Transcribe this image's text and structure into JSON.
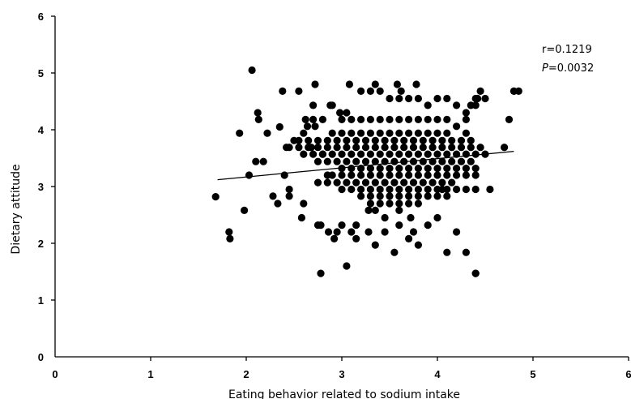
{
  "chart_data": {
    "type": "scatter",
    "title": "",
    "xlabel": "Eating behavior related to sodium intake",
    "ylabel": "Dietary attitude",
    "xlim": [
      0,
      6
    ],
    "ylim": [
      0,
      6
    ],
    "xticks": [
      "0",
      "1",
      "2",
      "3",
      "4",
      "5",
      "6"
    ],
    "yticks": [
      "0",
      "1",
      "2",
      "3",
      "4",
      "5",
      "6"
    ],
    "grid": false,
    "annotations": {
      "r": "r=0.1219",
      "p_letter": "P",
      "p_value": "=0.0032"
    },
    "trendline": {
      "x": [
        1.7,
        4.8
      ],
      "y": [
        3.12,
        3.62
      ]
    },
    "marker_color": "#000000",
    "points": {
      "x": [
        1.68,
        1.82,
        1.83,
        1.93,
        1.98,
        2.03,
        2.06,
        2.1,
        2.12,
        2.13,
        2.18,
        2.22,
        2.28,
        2.33,
        2.35,
        2.38,
        2.4,
        2.42,
        2.45,
        2.45,
        2.55,
        2.58,
        2.6,
        2.62,
        2.64,
        2.68,
        2.7,
        2.72,
        2.75,
        2.78,
        2.8,
        2.85,
        2.86,
        2.88,
        2.9,
        2.92,
        2.95,
        3.0,
        3.05,
        3.1,
        3.15,
        3.15,
        3.28,
        3.35,
        3.45,
        3.55,
        3.6,
        3.7,
        3.75,
        3.8,
        3.9,
        4.0,
        4.1,
        4.2,
        4.3,
        4.4,
        4.45,
        4.5,
        4.55,
        4.7,
        4.75,
        4.8,
        4.85,
        3.08,
        2.78,
        4.4,
        3.35,
        3.58,
        3.62,
        3.78,
        3.2,
        3.3,
        3.4,
        3.5,
        3.6,
        3.7,
        3.8,
        3.9,
        4.0,
        4.1,
        4.2,
        4.4,
        2.98,
        3.05,
        4.3,
        4.35,
        4.4,
        4.42,
        2.7,
        2.72,
        2.8,
        3.0,
        3.1,
        3.2,
        3.3,
        3.4,
        3.5,
        3.6,
        3.7,
        3.8,
        3.9,
        4.0,
        4.1,
        4.2,
        4.3,
        2.6,
        2.9,
        3.0,
        3.1,
        3.2,
        3.3,
        3.4,
        3.5,
        3.6,
        3.7,
        3.8,
        3.9,
        4.0,
        4.1,
        4.3,
        2.5,
        2.55,
        2.65,
        2.75,
        2.85,
        2.95,
        3.05,
        3.15,
        3.25,
        3.35,
        3.45,
        3.55,
        3.65,
        3.75,
        3.85,
        3.95,
        4.05,
        4.15,
        4.25,
        4.35,
        2.45,
        2.55,
        2.65,
        2.75,
        2.85,
        2.95,
        3.05,
        3.15,
        3.25,
        3.35,
        3.45,
        3.55,
        3.65,
        3.75,
        3.85,
        3.95,
        4.05,
        4.15,
        4.25,
        4.35,
        4.45,
        2.6,
        2.7,
        2.8,
        2.9,
        3.0,
        3.1,
        3.2,
        3.3,
        3.4,
        3.5,
        3.6,
        3.7,
        3.8,
        3.9,
        4.0,
        4.1,
        4.2,
        4.3,
        4.4,
        4.5,
        2.75,
        2.85,
        2.95,
        3.05,
        3.15,
        3.25,
        3.35,
        3.45,
        3.55,
        3.65,
        3.75,
        3.85,
        3.95,
        4.05,
        4.15,
        4.25,
        4.35,
        3.0,
        3.1,
        3.2,
        3.3,
        3.4,
        3.5,
        3.6,
        3.7,
        3.8,
        3.9,
        4.0,
        4.1,
        4.2,
        4.3,
        4.4,
        2.9,
        3.0,
        3.1,
        3.2,
        3.3,
        3.4,
        3.5,
        3.6,
        3.7,
        3.8,
        3.9,
        4.0,
        4.1,
        4.2,
        4.3,
        4.4,
        2.75,
        2.85,
        2.95,
        3.05,
        3.15,
        3.25,
        3.35,
        3.45,
        3.55,
        3.65,
        3.75,
        3.85,
        3.95,
        4.05,
        4.15,
        3.0,
        3.1,
        3.2,
        3.3,
        3.4,
        3.5,
        3.6,
        3.7,
        3.8,
        3.9,
        4.0,
        4.1,
        3.2,
        3.3,
        3.4,
        3.5,
        3.6,
        3.7,
        3.8,
        3.9,
        4.0,
        3.3,
        3.4,
        3.5,
        3.6,
        3.7,
        3.8,
        4.05,
        4.1,
        4.2,
        4.3,
        4.4,
        3.28,
        3.35,
        3.45,
        3.6,
        3.72
      ],
      "y": [
        2.82,
        2.2,
        2.08,
        3.94,
        2.58,
        3.2,
        5.05,
        3.44,
        4.3,
        4.18,
        3.44,
        3.94,
        2.83,
        2.7,
        4.05,
        4.68,
        3.2,
        3.69,
        2.95,
        2.83,
        4.68,
        2.45,
        2.7,
        4.18,
        4.06,
        3.69,
        4.43,
        4.8,
        2.32,
        2.32,
        3.57,
        3.2,
        2.2,
        4.43,
        4.43,
        2.08,
        2.2,
        2.32,
        1.6,
        2.2,
        2.32,
        2.08,
        2.2,
        1.97,
        2.2,
        1.84,
        2.32,
        2.08,
        2.2,
        1.97,
        2.32,
        2.45,
        1.84,
        2.2,
        1.84,
        1.47,
        4.68,
        4.55,
        2.95,
        3.69,
        4.18,
        4.68,
        4.68,
        4.8,
        1.47,
        1.47,
        4.8,
        4.8,
        4.68,
        4.8,
        4.68,
        4.68,
        4.68,
        4.55,
        4.55,
        4.55,
        4.55,
        4.43,
        4.55,
        4.55,
        4.43,
        4.55,
        4.3,
        4.3,
        4.3,
        4.43,
        4.43,
        4.55,
        4.18,
        4.06,
        4.18,
        4.18,
        4.18,
        4.18,
        4.18,
        4.18,
        4.18,
        4.18,
        4.18,
        4.18,
        4.18,
        4.18,
        4.18,
        4.06,
        4.18,
        3.94,
        3.94,
        3.94,
        3.94,
        3.94,
        3.94,
        3.94,
        3.94,
        3.94,
        3.94,
        3.94,
        3.94,
        3.94,
        3.94,
        3.94,
        3.81,
        3.81,
        3.81,
        3.81,
        3.81,
        3.81,
        3.81,
        3.81,
        3.81,
        3.81,
        3.81,
        3.81,
        3.81,
        3.81,
        3.81,
        3.81,
        3.81,
        3.81,
        3.81,
        3.81,
        3.69,
        3.69,
        3.69,
        3.69,
        3.69,
        3.69,
        3.69,
        3.69,
        3.69,
        3.69,
        3.69,
        3.69,
        3.69,
        3.69,
        3.69,
        3.69,
        3.69,
        3.69,
        3.69,
        3.69,
        3.69,
        3.57,
        3.57,
        3.57,
        3.57,
        3.57,
        3.57,
        3.57,
        3.57,
        3.57,
        3.57,
        3.57,
        3.57,
        3.57,
        3.57,
        3.57,
        3.57,
        3.57,
        3.57,
        3.57,
        3.57,
        3.44,
        3.44,
        3.44,
        3.44,
        3.44,
        3.44,
        3.44,
        3.44,
        3.44,
        3.44,
        3.44,
        3.44,
        3.44,
        3.44,
        3.44,
        3.44,
        3.44,
        3.32,
        3.32,
        3.32,
        3.32,
        3.32,
        3.32,
        3.32,
        3.32,
        3.32,
        3.32,
        3.32,
        3.32,
        3.32,
        3.32,
        3.32,
        3.2,
        3.2,
        3.2,
        3.2,
        3.2,
        3.2,
        3.2,
        3.2,
        3.2,
        3.2,
        3.2,
        3.2,
        3.2,
        3.2,
        3.2,
        3.2,
        3.07,
        3.07,
        3.07,
        3.07,
        3.07,
        3.07,
        3.07,
        3.07,
        3.07,
        3.07,
        3.07,
        3.07,
        3.07,
        3.07,
        3.07,
        2.95,
        2.95,
        2.95,
        2.95,
        2.95,
        2.95,
        2.95,
        2.95,
        2.95,
        2.95,
        2.95,
        2.95,
        2.83,
        2.83,
        2.83,
        2.83,
        2.83,
        2.83,
        2.83,
        2.83,
        2.83,
        2.7,
        2.7,
        2.7,
        2.7,
        2.7,
        2.7,
        2.95,
        2.83,
        2.95,
        2.95,
        2.95,
        2.58,
        2.58,
        2.45,
        2.58,
        2.45
      ]
    }
  }
}
